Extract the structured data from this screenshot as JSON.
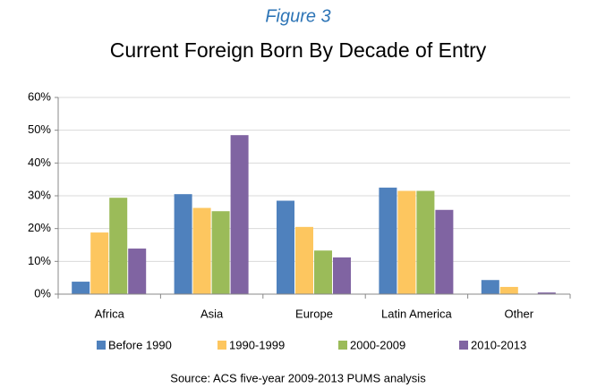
{
  "chart_data": {
    "type": "bar",
    "title": "Figure 3",
    "subtitle": "Current Foreign Born By Decade of Entry",
    "note": "Source: ACS five-year 2009-2013 PUMS analysis",
    "categories": [
      "Africa",
      "Asia",
      "Europe",
      "Latin America",
      "Other"
    ],
    "series": [
      {
        "name": "Before 1990",
        "color": "#4f81bd",
        "values": [
          3.8,
          30.5,
          28.5,
          32.5,
          4.3
        ]
      },
      {
        "name": "1990-1999",
        "color": "#fdc65f",
        "values": [
          18.8,
          26.3,
          20.5,
          31.5,
          2.2
        ]
      },
      {
        "name": "2000-2009",
        "color": "#9bbb59",
        "values": [
          29.4,
          25.3,
          13.3,
          31.5,
          0.1
        ]
      },
      {
        "name": "2010-2013",
        "color": "#8064a2",
        "values": [
          13.9,
          48.5,
          11.2,
          25.7,
          0.5
        ]
      }
    ],
    "ylim": [
      0,
      60
    ],
    "yticks": [
      {
        "value": 0,
        "label": "0%"
      },
      {
        "value": 10,
        "label": "10%"
      },
      {
        "value": 20,
        "label": "20%"
      },
      {
        "value": 30,
        "label": "30%"
      },
      {
        "value": 40,
        "label": "40%"
      },
      {
        "value": 50,
        "label": "50%"
      },
      {
        "value": 60,
        "label": "60%"
      }
    ],
    "grid": true,
    "legend": "bottom"
  }
}
